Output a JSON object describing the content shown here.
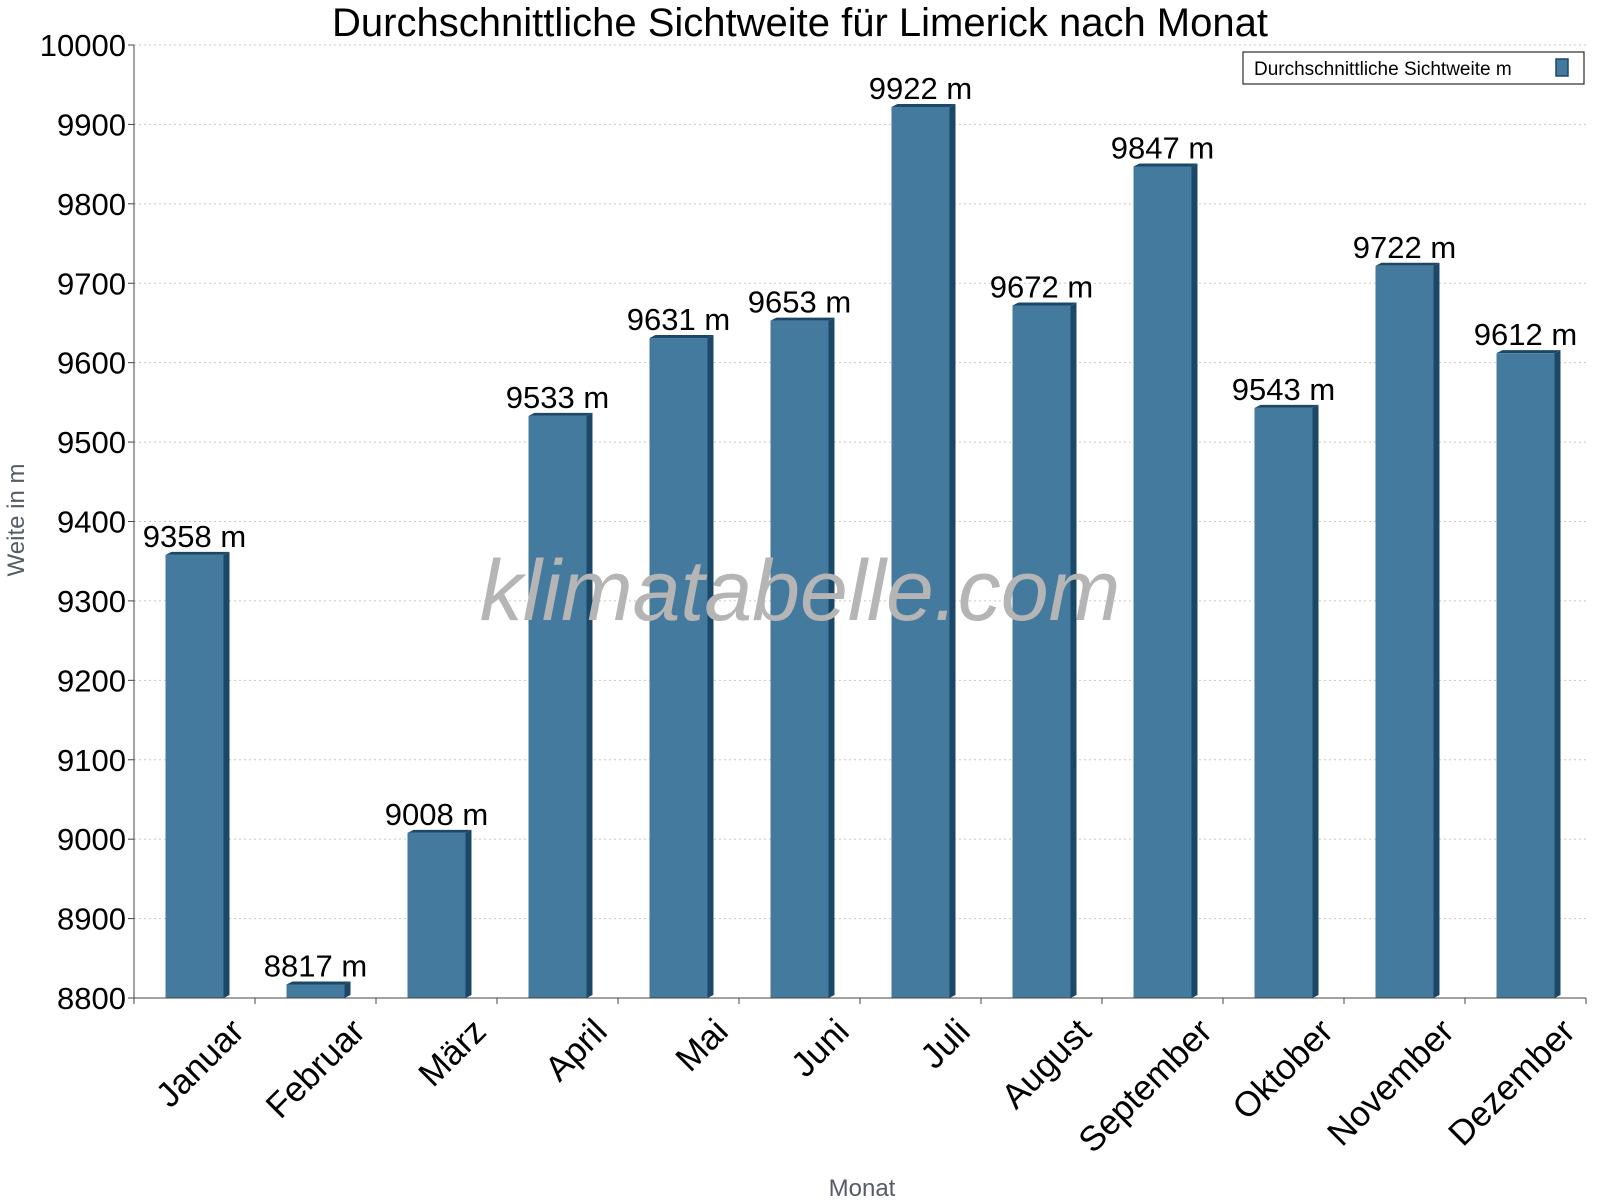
{
  "chart_data": {
    "type": "bar",
    "title": "Durchschnittliche Sichtweite für Limerick nach Monat",
    "xlabel": "Monat",
    "ylabel": "Weite in m",
    "categories": [
      "Januar",
      "Februar",
      "März",
      "April",
      "Mai",
      "Juni",
      "Juli",
      "August",
      "September",
      "Oktober",
      "November",
      "Dezember"
    ],
    "series": [
      {
        "name": "Durchschnittliche Sichtweite m",
        "values": [
          9358,
          8817,
          9008,
          9533,
          9631,
          9653,
          9922,
          9672,
          9847,
          9543,
          9722,
          9612
        ],
        "unit": "m"
      }
    ],
    "data_labels": [
      "9358 m",
      "8817 m",
      "9008 m",
      "9533 m",
      "9631 m",
      "9653 m",
      "9922 m",
      "9672 m",
      "9847 m",
      "9543 m",
      "9722 m",
      "9612 m"
    ],
    "ylim": [
      8800,
      10000
    ],
    "yticks": [
      8800,
      8900,
      9000,
      9100,
      9200,
      9300,
      9400,
      9500,
      9600,
      9700,
      9800,
      9900,
      10000
    ],
    "grid": true,
    "legend_position": "top-right",
    "watermark": "klimatabelle.com",
    "colors": {
      "bar": "#447a9e",
      "bar_edge": "#1c4868",
      "grid": "#c8c8c8"
    }
  }
}
